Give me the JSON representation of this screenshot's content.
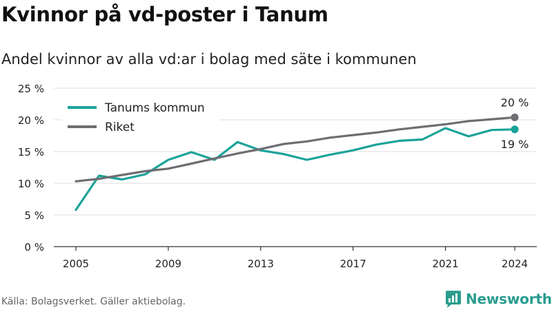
{
  "title": "Kvinnor på vd-poster i Tanum",
  "subtitle": "Andel kvinnor av alla vd:ar i bolag med säte i kommunen",
  "source": "Källa: Bolagsverket. Gäller aktiebolag.",
  "brand": "Newsworthy",
  "colors": {
    "tanum": "#1aa39a",
    "riket": "#6e6d72",
    "grid": "#dcdcdc",
    "axis": "#333333"
  },
  "chart_data": {
    "type": "line",
    "ylim": [
      0,
      25
    ],
    "xlim": [
      2005,
      2024
    ],
    "y_ticks": [
      0,
      5,
      10,
      15,
      20,
      25
    ],
    "y_tick_labels": [
      "0 %",
      "5 %",
      "10 %",
      "15 %",
      "20 %",
      "25 %"
    ],
    "x_ticks": [
      2005,
      2009,
      2013,
      2017,
      2021,
      2024
    ],
    "x_tick_labels": [
      "2005",
      "2009",
      "2013",
      "2017",
      "2021",
      "2024"
    ],
    "grid": "horizontal",
    "legend_position": "top-left",
    "series": [
      {
        "name": "Tanums kommun",
        "x": [
          2005,
          2006,
          2007,
          2008,
          2009,
          2010,
          2011,
          2012,
          2013,
          2014,
          2015,
          2016,
          2017,
          2018,
          2019,
          2020,
          2021,
          2022,
          2023,
          2024
        ],
        "values": [
          5.8,
          11.2,
          10.6,
          11.4,
          13.7,
          14.9,
          13.7,
          16.5,
          15.2,
          14.6,
          13.7,
          14.5,
          15.2,
          16.1,
          16.7,
          16.9,
          18.7,
          17.4,
          18.4,
          18.5
        ],
        "end_label": "19 %"
      },
      {
        "name": "Riket",
        "x": [
          2005,
          2006,
          2007,
          2008,
          2009,
          2010,
          2011,
          2012,
          2013,
          2014,
          2015,
          2016,
          2017,
          2018,
          2019,
          2020,
          2021,
          2022,
          2023,
          2024
        ],
        "values": [
          10.3,
          10.7,
          11.3,
          11.9,
          12.3,
          13.1,
          13.9,
          14.7,
          15.4,
          16.2,
          16.6,
          17.2,
          17.6,
          18.0,
          18.5,
          18.9,
          19.3,
          19.8,
          20.1,
          20.4
        ],
        "end_label": "20 %"
      }
    ]
  }
}
